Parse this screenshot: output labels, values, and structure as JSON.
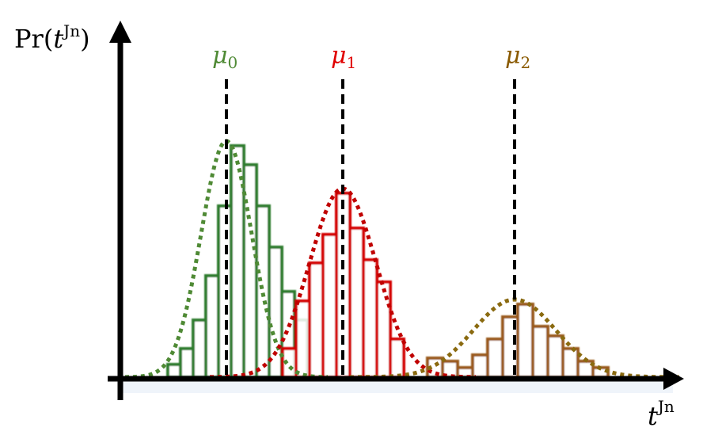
{
  "y_axis_label": {
    "prefix": "Pr(",
    "var": "t",
    "sup": "Jn",
    "suffix": ")"
  },
  "x_axis_label": {
    "var": "t",
    "sup": "Jn"
  },
  "distributions": [
    {
      "mean_symbol": "μ",
      "mean_subscript": "0",
      "color": "#2e7d2e",
      "curve_color": "#4f8a35",
      "histogram": [
        4,
        9,
        18,
        32,
        54,
        73,
        67,
        54,
        41,
        27,
        18
      ]
    },
    {
      "mean_symbol": "μ",
      "mean_subscript": "1",
      "color": "#d40000",
      "curve_color": "#c00000",
      "histogram": [
        9,
        24,
        36,
        45,
        58,
        47,
        37,
        30,
        12
      ]
    },
    {
      "mean_symbol": "μ",
      "mean_subscript": "2",
      "color": "#9a5a1a",
      "curve_color": "#8a6a10",
      "histogram": [
        6,
        5,
        3,
        7,
        12,
        19,
        23,
        16,
        13,
        9,
        5,
        3
      ]
    }
  ]
}
